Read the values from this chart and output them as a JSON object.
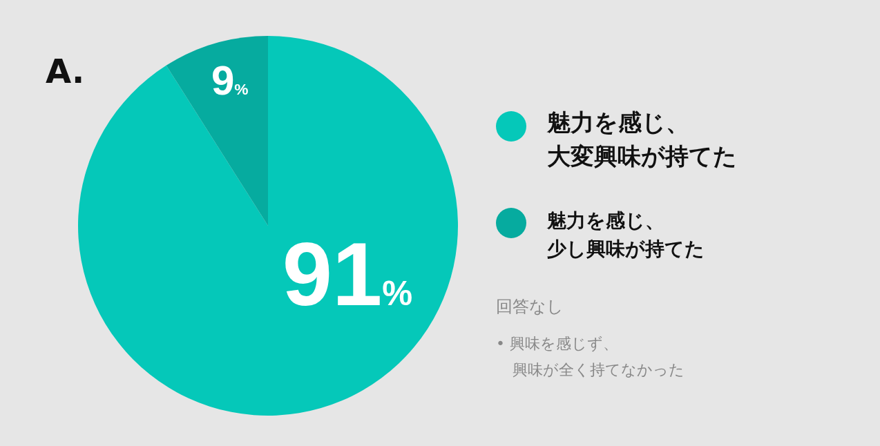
{
  "chart_data": {
    "type": "pie",
    "title": "A.",
    "categories": [
      "魅力を感じ、大変興味が持てた",
      "魅力を感じ、少し興味が持てた"
    ],
    "values": [
      91,
      9
    ],
    "colors": [
      "#05c8b9",
      "#06ab9f"
    ],
    "value_labels": [
      "91%",
      "9%"
    ],
    "legend": "right",
    "annotations": [
      "回答なし",
      "• 興味を感じず、興味が全く持てなかった"
    ]
  }
}
